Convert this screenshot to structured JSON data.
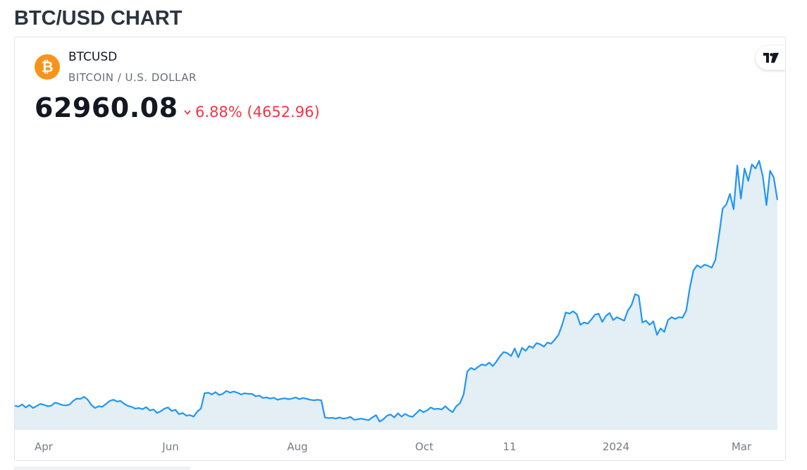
{
  "page": {
    "title": "BTC/USD CHART"
  },
  "widget": {
    "coin_icon": "bitcoin-icon",
    "coin_symbol_glyph": "₿",
    "symbol": "BTCUSD",
    "description": "BITCOIN / U.S. DOLLAR",
    "price": "62960.08",
    "change_direction": "down",
    "change_percent": "6.88%",
    "change_abs": "(4652.96)",
    "brand_icon": "tradingview-logo-icon",
    "colors": {
      "line": "#2196f3",
      "area": "#e3eef5",
      "negative": "#f23645",
      "coin": "#f7931a"
    }
  },
  "chart_data": {
    "type": "area",
    "x_ticks": [
      "Apr",
      "Jun",
      "Aug",
      "Oct",
      "11",
      "2024",
      "Mar"
    ],
    "series": [
      {
        "values": [
          28100,
          27950,
          28300,
          27800,
          28200,
          27700,
          28050,
          28400,
          28250,
          28000,
          28100,
          28600,
          28450,
          28200,
          28150,
          28300,
          28900,
          29300,
          29250,
          29600,
          29100,
          28200,
          27700,
          28000,
          27900,
          28400,
          28900,
          29100,
          28800,
          28900,
          28400,
          28050,
          27900,
          27600,
          27700,
          27500,
          27850,
          27300,
          27450,
          26850,
          27150,
          27600,
          27800,
          27200,
          27400,
          26650,
          26850,
          26400,
          26500,
          26250,
          27100,
          27600,
          30200,
          30300,
          30000,
          30400,
          29900,
          30100,
          30600,
          30300,
          30500,
          30300,
          30000,
          30200,
          30100,
          30100,
          29700,
          29800,
          29400,
          29500,
          29300,
          29450,
          29100,
          29250,
          29350,
          29200,
          29300,
          29500,
          29200,
          29400,
          29250,
          29100,
          29000,
          29100,
          29000,
          26100,
          26000,
          26050,
          25900,
          26100,
          25900,
          26000,
          26200,
          25700,
          25800,
          25900,
          25750,
          25650,
          26100,
          26500,
          25400,
          25800,
          26400,
          26600,
          26100,
          26800,
          26250,
          26700,
          26350,
          26200,
          26800,
          27400,
          27000,
          27300,
          27800,
          27500,
          27600,
          27450,
          28000,
          27400,
          27000,
          28000,
          28500,
          30000,
          33900,
          34500,
          34200,
          34700,
          35100,
          34900,
          35400,
          34800,
          35600,
          36500,
          37200,
          37000,
          36500,
          37800,
          36300,
          37900,
          37400,
          38200,
          37900,
          38700,
          38500,
          38100,
          38800,
          38600,
          39300,
          40100,
          41800,
          43900,
          43700,
          44100,
          43600,
          41800,
          42200,
          42000,
          42700,
          43500,
          43700,
          42300,
          43300,
          43800,
          42600,
          43100,
          42800,
          42500,
          44200,
          45100,
          47000,
          46700,
          42200,
          42500,
          41800,
          42400,
          40100,
          41200,
          40600,
          42600,
          43100,
          42800,
          43100,
          43000,
          44200,
          48100,
          51000,
          51900,
          51500,
          52000,
          51800,
          51500,
          52800,
          57000,
          61500,
          62200,
          64000,
          61400,
          68800,
          63200,
          68300,
          66200,
          69000,
          68300,
          69600,
          67000,
          62100,
          67900,
          66800,
          62960
        ]
      }
    ],
    "ylim": [
      24000,
      75000
    ],
    "grid": false,
    "title": "",
    "xlabel": "",
    "ylabel": ""
  }
}
